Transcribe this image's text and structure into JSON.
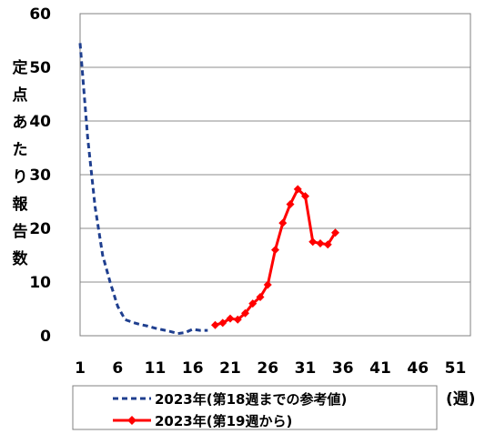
{
  "chart_data": {
    "type": "line",
    "ylabel": "定点あたり報告数",
    "xunit": "(週)",
    "xlim": [
      1,
      53
    ],
    "ylim": [
      0,
      60
    ],
    "xticks": [
      1,
      6,
      11,
      16,
      21,
      26,
      31,
      36,
      41,
      46,
      51
    ],
    "yticks": [
      0,
      10,
      20,
      30,
      40,
      50,
      60
    ],
    "grid": true,
    "legend_position": "bottom",
    "series": [
      {
        "name": "2023年(第18週までの参考値)",
        "color": "#1f3f8f",
        "style": "dashed",
        "marker": "none",
        "x": [
          1,
          2,
          3,
          4,
          5,
          6,
          7,
          8,
          9,
          10,
          11,
          12,
          13,
          14,
          15,
          16,
          17,
          18
        ],
        "y": [
          54.5,
          37,
          24,
          15,
          10,
          5.5,
          3,
          2.5,
          2.1,
          1.8,
          1.4,
          1.1,
          0.8,
          0.4,
          0.6,
          1.2,
          1.0,
          1.0
        ]
      },
      {
        "name": "2023年(第19週から)",
        "color": "#ff0000",
        "style": "solid",
        "marker": "diamond",
        "x": [
          19,
          20,
          21,
          22,
          23,
          24,
          25,
          26,
          27,
          28,
          29,
          30,
          31,
          32,
          33,
          34,
          35
        ],
        "y": [
          2.0,
          2.4,
          3.2,
          3.0,
          4.2,
          6.0,
          7.2,
          9.5,
          16.0,
          21.0,
          24.5,
          27.3,
          26.0,
          17.5,
          17.2,
          17.0,
          19.2
        ]
      }
    ]
  }
}
